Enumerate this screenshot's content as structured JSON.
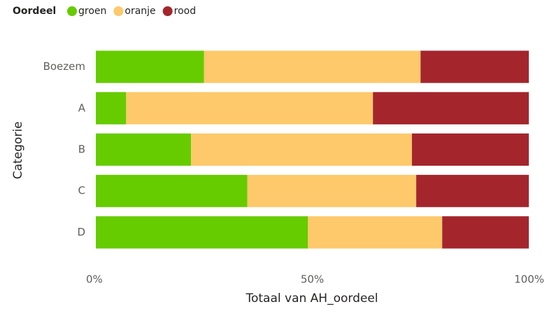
{
  "chart_data": {
    "type": "stacked_barh",
    "legend_title": "Oordeel",
    "categories": [
      "Boezem",
      "A",
      "B",
      "C",
      "D"
    ],
    "series": [
      {
        "name": "groen",
        "color": "#66cc00",
        "values": [
          25,
          7,
          22,
          35,
          49
        ]
      },
      {
        "name": "oranje",
        "color": "#fdc96b",
        "values": [
          50,
          57,
          51,
          39,
          31
        ]
      },
      {
        "name": "rood",
        "color": "#a4262c",
        "values": [
          25,
          36,
          27,
          26,
          20
        ]
      }
    ],
    "xlabel": "Totaal van AH_oordeel",
    "ylabel": "Categorie",
    "xlim": [
      0,
      100
    ],
    "xticks": [
      {
        "value": 0,
        "label": "0%"
      },
      {
        "value": 50,
        "label": "50%"
      },
      {
        "value": 100,
        "label": "100%"
      }
    ],
    "grid": false,
    "legend_position": "top-left"
  }
}
